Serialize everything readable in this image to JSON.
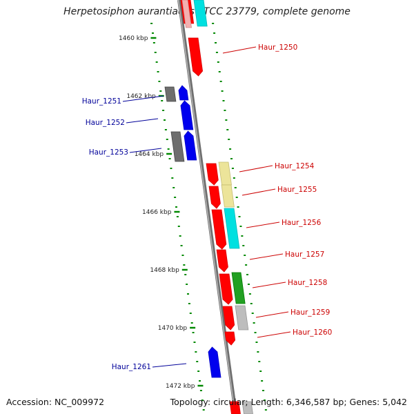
{
  "title": "Herpetosiphon aurantiacus ATCC 23779, complete genome",
  "footer": {
    "accession": "Accession: NC_009972",
    "topology": "Topology: circular; Length: 6,346,587 bp; Genes: 5,042"
  },
  "colors": {
    "forward_label": "#cc0000",
    "reverse_label": "#000099",
    "tick": "#008800",
    "backbone": "#8c8c8c",
    "red_gene": "#ff0000",
    "blue_gene": "#0000ee",
    "gray_gene": "#6e6e6e",
    "cyan_gene": "#00e0e0",
    "khaki_gene": "#ece49a",
    "green_gene": "#22a022",
    "lightgray_gene": "#bdbdbd"
  },
  "kbp_labels": [
    "1460 kbp",
    "1462 kbp",
    "1464 kbp",
    "1466 kbp",
    "1468 kbp",
    "1470 kbp",
    "1472 kbp"
  ],
  "genes_forward": [
    "Haur_1250",
    "Haur_1254",
    "Haur_1255",
    "Haur_1256",
    "Haur_1257",
    "Haur_1258",
    "Haur_1259",
    "Haur_1260"
  ],
  "genes_reverse": [
    "Haur_1251",
    "Haur_1252",
    "Haur_1253",
    "Haur_1261"
  ]
}
